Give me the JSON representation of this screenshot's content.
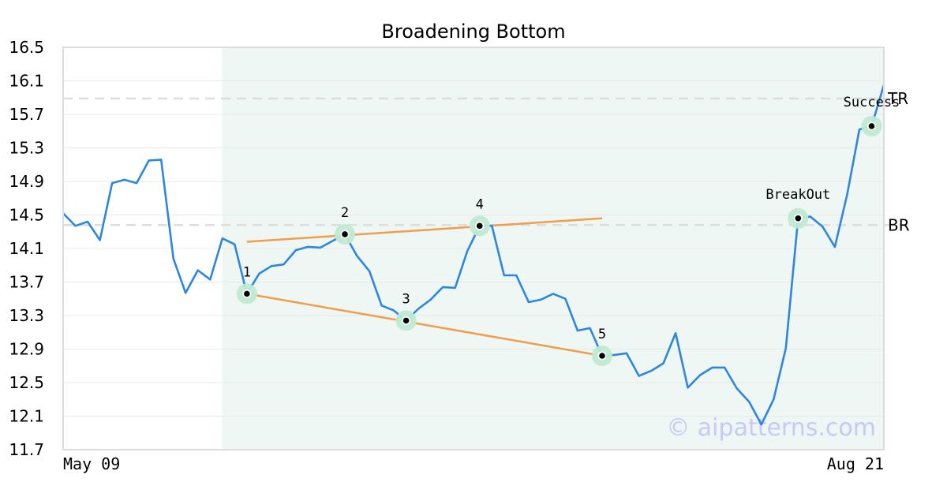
{
  "chart_data": {
    "type": "line",
    "title": "Broadening Bottom",
    "ylim": [
      11.7,
      16.5
    ],
    "yticks": [
      "16.5",
      "16.1",
      "15.7",
      "15.3",
      "14.9",
      "14.5",
      "14.1",
      "13.7",
      "13.3",
      "12.9",
      "12.5",
      "12.1",
      "11.7"
    ],
    "xticks": [
      "May 09",
      "Aug 21"
    ],
    "grid": true,
    "pattern_region_index": [
      13,
      67
    ],
    "series": [
      {
        "values": [
          14.52,
          14.37,
          14.42,
          14.2,
          14.88,
          14.92,
          14.88,
          15.15,
          15.16,
          13.98,
          13.57,
          13.84,
          13.73,
          14.22,
          14.15,
          13.56,
          13.8,
          13.89,
          13.91,
          14.08,
          14.12,
          14.11,
          14.19,
          14.27,
          14.01,
          13.83,
          13.42,
          13.36,
          13.24,
          13.38,
          13.49,
          13.64,
          13.63,
          14.07,
          14.37,
          14.37,
          13.78,
          13.78,
          13.46,
          13.49,
          13.56,
          13.5,
          13.12,
          13.15,
          12.82,
          12.83,
          12.85,
          12.58,
          12.64,
          12.73,
          13.09,
          12.44,
          12.59,
          12.68,
          12.68,
          12.43,
          12.27,
          12.0,
          12.3,
          12.91,
          14.46,
          14.48,
          14.36,
          14.12,
          14.74,
          15.52,
          15.56,
          16.05
        ]
      }
    ],
    "points": [
      {
        "label": "1",
        "index": 15,
        "value": 13.56
      },
      {
        "label": "2",
        "index": 23,
        "value": 14.27
      },
      {
        "label": "3",
        "index": 28,
        "value": 13.24
      },
      {
        "label": "4",
        "index": 34,
        "value": 14.37
      },
      {
        "label": "5",
        "index": 44,
        "value": 12.82
      }
    ],
    "annotations": [
      {
        "label": "BreakOut",
        "index": 60,
        "value": 14.46
      },
      {
        "label": "Success",
        "index": 66,
        "value": 15.56
      }
    ],
    "trendlines": [
      {
        "name": "upper",
        "from": [
          15,
          14.18
        ],
        "to": [
          44,
          14.46
        ]
      },
      {
        "name": "lower",
        "from": [
          15,
          13.56
        ],
        "to": [
          44,
          12.82
        ]
      }
    ],
    "levels": [
      {
        "label": "TR",
        "value": 15.89
      },
      {
        "label": "BR",
        "value": 14.38
      }
    ],
    "watermark": "© aipatterns.com",
    "colors": {
      "line": "#2e86de",
      "trendline": "#f39c4a",
      "region": "#eef7f3",
      "marker_halo": "#bfe9d3",
      "level": "#dddddd",
      "grid": "#e8e8e8"
    }
  }
}
